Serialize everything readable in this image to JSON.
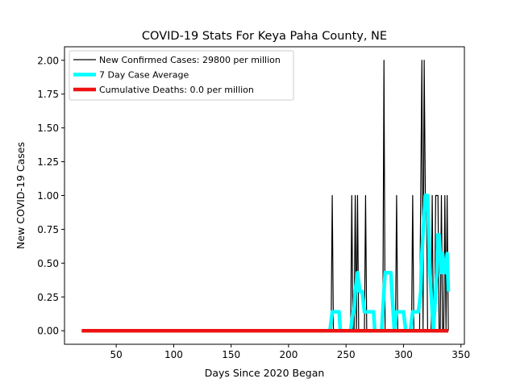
{
  "chart_data": {
    "type": "line",
    "title": "COVID-19 Stats For Keya Paha County, NE",
    "xlabel": "Days Since 2020 Began",
    "ylabel": "New COVID-19 Cases",
    "xlim": [
      5,
      353
    ],
    "ylim": [
      -0.1,
      2.1
    ],
    "xticks": [
      50,
      100,
      150,
      200,
      250,
      300,
      350
    ],
    "yticks": [
      0.0,
      0.25,
      0.5,
      0.75,
      1.0,
      1.25,
      1.5,
      1.75,
      2.0
    ],
    "ytick_labels": [
      "0.00",
      "0.25",
      "0.50",
      "0.75",
      "1.00",
      "1.25",
      "1.50",
      "1.75",
      "2.00"
    ],
    "grid": false,
    "legend_position": "top-left",
    "series": [
      {
        "name": "New Confirmed Cases: 29800 per million",
        "color": "#000000",
        "points": [
          [
            20,
            0
          ],
          [
            236,
            0
          ],
          [
            237,
            0
          ],
          [
            238,
            1
          ],
          [
            239,
            0
          ],
          [
            254,
            0
          ],
          [
            255,
            1
          ],
          [
            256,
            0
          ],
          [
            257,
            0
          ],
          [
            258,
            1
          ],
          [
            259,
            0
          ],
          [
            260,
            1
          ],
          [
            261,
            0
          ],
          [
            266,
            0
          ],
          [
            267,
            1
          ],
          [
            268,
            0
          ],
          [
            282,
            0
          ],
          [
            283,
            2
          ],
          [
            284,
            0
          ],
          [
            293,
            0
          ],
          [
            294,
            1
          ],
          [
            295,
            0
          ],
          [
            307,
            0
          ],
          [
            308,
            1
          ],
          [
            309,
            0
          ],
          [
            314,
            0
          ],
          [
            315,
            1
          ],
          [
            316,
            2
          ],
          [
            317,
            0
          ],
          [
            318,
            2
          ],
          [
            319,
            1
          ],
          [
            320,
            1
          ],
          [
            321,
            0
          ],
          [
            324,
            0
          ],
          [
            325,
            1
          ],
          [
            326,
            0
          ],
          [
            327,
            0
          ],
          [
            328,
            1
          ],
          [
            329,
            1
          ],
          [
            330,
            1
          ],
          [
            331,
            0
          ],
          [
            332,
            0
          ],
          [
            333,
            1
          ],
          [
            334,
            0
          ],
          [
            335,
            0
          ],
          [
            336,
            1
          ],
          [
            337,
            0
          ],
          [
            338,
            1
          ],
          [
            339,
            0
          ]
        ]
      },
      {
        "name": "7 Day Case Average",
        "color": "#00ffff",
        "points": [
          [
            20,
            0
          ],
          [
            236,
            0
          ],
          [
            238,
            0.14
          ],
          [
            244,
            0.14
          ],
          [
            245,
            0
          ],
          [
            254,
            0
          ],
          [
            256,
            0.14
          ],
          [
            257,
            0.14
          ],
          [
            258,
            0.29
          ],
          [
            260,
            0.43
          ],
          [
            262,
            0.29
          ],
          [
            264,
            0.29
          ],
          [
            266,
            0.14
          ],
          [
            274,
            0.14
          ],
          [
            275,
            0
          ],
          [
            281,
            0
          ],
          [
            283,
            0.29
          ],
          [
            284,
            0.43
          ],
          [
            289,
            0.43
          ],
          [
            291,
            0.14
          ],
          [
            292,
            0
          ],
          [
            294,
            0.14
          ],
          [
            300,
            0.14
          ],
          [
            302,
            0
          ],
          [
            306,
            0
          ],
          [
            308,
            0.14
          ],
          [
            313,
            0.14
          ],
          [
            315,
            0.29
          ],
          [
            316,
            0.57
          ],
          [
            318,
            0.86
          ],
          [
            319,
            1.0
          ],
          [
            321,
            1.0
          ],
          [
            322,
            0.71
          ],
          [
            323,
            0.43
          ],
          [
            325,
            0.14
          ],
          [
            326,
            0.0
          ],
          [
            327,
            0.14
          ],
          [
            329,
            0.43
          ],
          [
            330,
            0.71
          ],
          [
            331,
            0.71
          ],
          [
            333,
            0.43
          ],
          [
            334,
            0.57
          ],
          [
            336,
            0.43
          ],
          [
            337,
            0.43
          ],
          [
            338,
            0.57
          ],
          [
            339,
            0.29
          ]
        ]
      },
      {
        "name": "Cumulative Deaths: 0.0 per million",
        "color": "#ee1111",
        "points": [
          [
            20,
            0
          ],
          [
            339,
            0
          ]
        ]
      }
    ]
  }
}
